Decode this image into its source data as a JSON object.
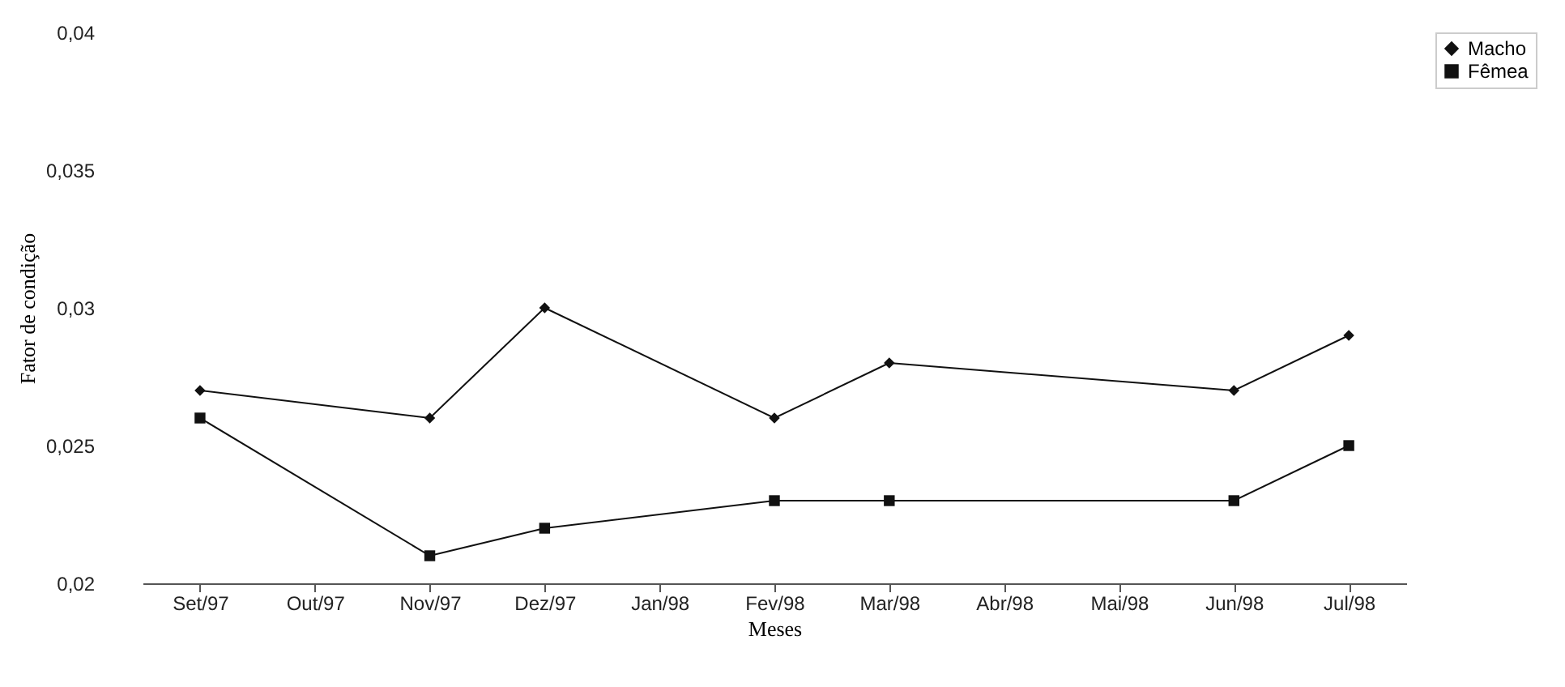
{
  "chart_data": {
    "type": "line",
    "xlabel": "Meses",
    "ylabel": "Fator de condição",
    "categories": [
      "Set/97",
      "Out/97",
      "Nov/97",
      "Dez/97",
      "Jan/98",
      "Fev/98",
      "Mar/98",
      "Abr/98",
      "Mai/98",
      "Jun/98",
      "Jul/98"
    ],
    "series": [
      {
        "name": "Macho",
        "color": "#111111",
        "marker": "diamond",
        "values": [
          0.027,
          null,
          0.026,
          0.03,
          null,
          0.026,
          0.028,
          null,
          null,
          0.027,
          0.029
        ]
      },
      {
        "name": "Fêmea",
        "color": "#111111",
        "marker": "square",
        "values": [
          0.026,
          null,
          0.021,
          0.022,
          null,
          0.023,
          0.023,
          null,
          null,
          0.023,
          0.025
        ]
      }
    ],
    "ylim": [
      0.02,
      0.04
    ],
    "yticks": [
      {
        "value": 0.02,
        "label": "0,02"
      },
      {
        "value": 0.025,
        "label": "0,025"
      },
      {
        "value": 0.03,
        "label": "0,03"
      },
      {
        "value": 0.035,
        "label": "0,035"
      },
      {
        "value": 0.04,
        "label": "0,04"
      }
    ],
    "legend": "right"
  }
}
